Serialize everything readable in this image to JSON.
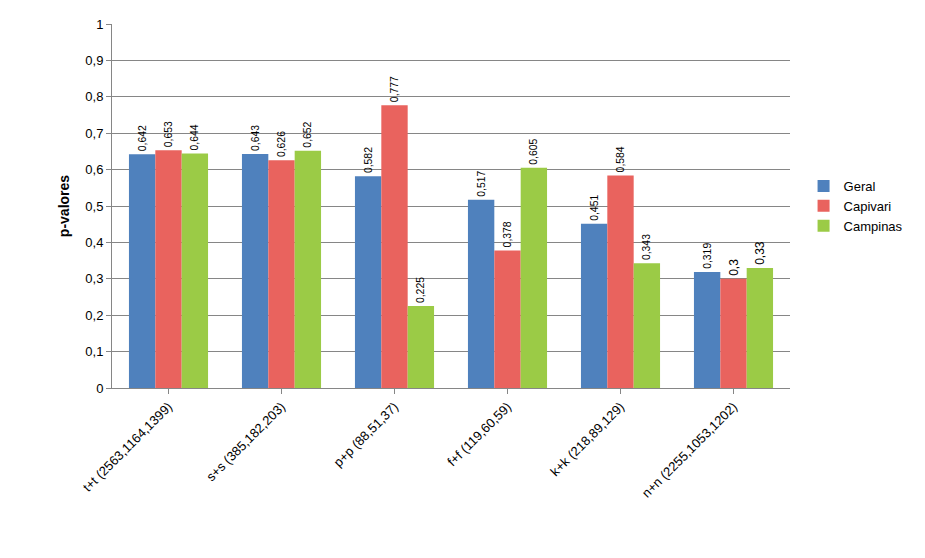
{
  "chart_data": {
    "type": "bar",
    "y_label": "p-valores",
    "categories": [
      "t+t (2563,1164,1399)",
      "s+s (385,182,203)",
      "p+p (88,51,37)",
      "f+f (119,60,59)",
      "k+k (218,89,129)",
      "n+n (2255,1053,1202)"
    ],
    "series": [
      {
        "name": "Geral",
        "color": "#4f81bd",
        "values": [
          0.642,
          0.643,
          0.582,
          0.517,
          0.451,
          0.319
        ],
        "value_labels": [
          "0,642",
          "0,643",
          "0,582",
          "0,517",
          "0,451",
          "0,319"
        ]
      },
      {
        "name": "Capivari",
        "color": "#e9635e",
        "values": [
          0.653,
          0.626,
          0.777,
          0.378,
          0.584,
          0.3
        ],
        "value_labels": [
          "0,653",
          "0,626",
          "0,777",
          "0,378",
          "0,584",
          "0,3"
        ]
      },
      {
        "name": "Campinas",
        "color": "#9bcb46",
        "values": [
          0.644,
          0.652,
          0.225,
          0.605,
          0.343,
          0.33
        ],
        "value_labels": [
          "0,644",
          "0,652",
          "0,225",
          "0,605",
          "0,343",
          "0,33"
        ]
      }
    ],
    "ylim": [
      0,
      1
    ],
    "yticks": [
      0,
      {
        "value": 0.1,
        "label": "0,1"
      },
      {
        "value": 0.2,
        "label": "0,2"
      },
      {
        "value": 0.3,
        "label": "0,3"
      },
      {
        "value": 0.4,
        "label": "0,4"
      },
      {
        "value": 0.5,
        "label": "0,5"
      },
      {
        "value": 0.6,
        "label": "0,6"
      },
      {
        "value": 0.7,
        "label": "0,7"
      },
      {
        "value": 0.8,
        "label": "0,8"
      },
      {
        "value": 0.9,
        "label": "0,9"
      },
      1
    ],
    "grid": true,
    "legend": "right",
    "data_labels": true
  }
}
